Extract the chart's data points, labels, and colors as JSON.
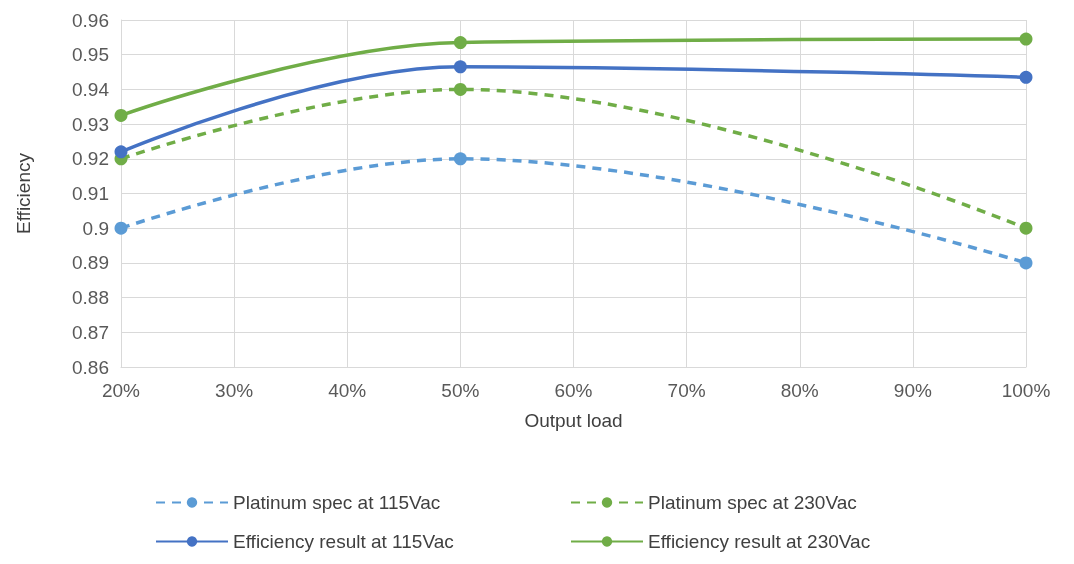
{
  "chart_data": {
    "type": "line",
    "xlabel": "Output load",
    "ylabel": "Efficiency",
    "x": [
      20,
      50,
      100
    ],
    "xlim": [
      20,
      100
    ],
    "xticks": [
      {
        "value": 20,
        "label": "20%"
      },
      {
        "value": 30,
        "label": "30%"
      },
      {
        "value": 40,
        "label": "40%"
      },
      {
        "value": 50,
        "label": "50%"
      },
      {
        "value": 60,
        "label": "60%"
      },
      {
        "value": 70,
        "label": "70%"
      },
      {
        "value": 80,
        "label": "80%"
      },
      {
        "value": 90,
        "label": "90%"
      },
      {
        "value": 100,
        "label": "100%"
      }
    ],
    "ylim": [
      0.86,
      0.96
    ],
    "yticks": [
      0.86,
      0.87,
      0.88,
      0.89,
      0.9,
      0.91,
      0.92,
      0.93,
      0.94,
      0.95,
      0.96
    ],
    "grid": true,
    "legend": "bottom",
    "marker": "circle",
    "series": [
      {
        "name": "Platinum spec at 115Vac",
        "color": "#5b9bd5",
        "line_style": "dashed",
        "values": [
          0.9,
          0.92,
          0.89
        ]
      },
      {
        "name": "Platinum spec at 230Vac",
        "color": "#70ad47",
        "line_style": "dashed",
        "values": [
          0.92,
          0.94,
          0.9
        ]
      },
      {
        "name": "Efficiency result at 115Vac",
        "color": "#4472c4",
        "line_style": "solid",
        "values": [
          0.922,
          0.9465,
          0.9435
        ]
      },
      {
        "name": "Efficiency result at 230Vac",
        "color": "#70ad47",
        "line_style": "solid",
        "values": [
          0.9325,
          0.9535,
          0.9545
        ]
      }
    ]
  }
}
